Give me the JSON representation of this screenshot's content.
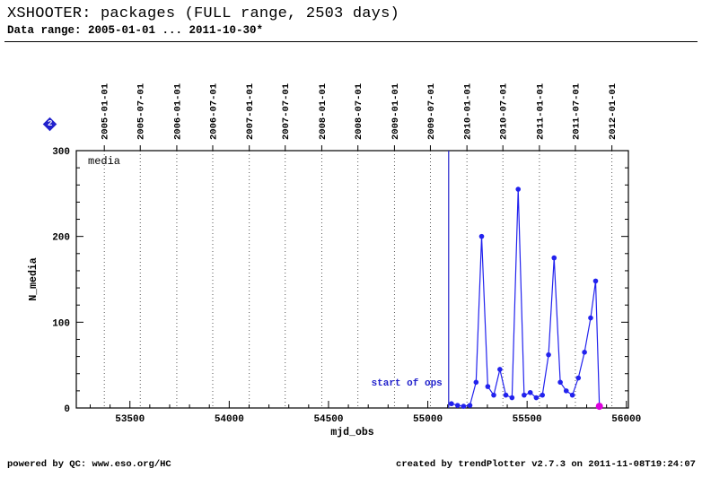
{
  "header": {
    "title": "XSHOOTER: packages (FULL range, 2503 days)",
    "subtitle": "Data range: 2005-01-01 ... 2011-10-30*"
  },
  "badge": {
    "value": "2",
    "color": "#2222cc"
  },
  "footer": {
    "left": "powered by QC: www.eso.org/HC",
    "right": "created by trendPlotter v2.7.3 on 2011-11-08T19:24:07"
  },
  "chart_data": {
    "type": "line",
    "title": "",
    "xlabel": "mjd_obs",
    "ylabel": "N_media",
    "legend": [
      "media"
    ],
    "legend_position": "top-left-inside",
    "grid": "vertical-dotted-at-dates",
    "xlim": [
      53230,
      56010
    ],
    "ylim": [
      0,
      300
    ],
    "x_ticks": [
      53500,
      54000,
      54500,
      55000,
      55500,
      56000
    ],
    "x_minor_step": 100,
    "y_ticks": [
      0,
      100,
      200,
      300
    ],
    "y_minor_step": 20,
    "top_date_ticks": [
      {
        "label": "2005-01-01",
        "mjd": 53371
      },
      {
        "label": "2005-07-01",
        "mjd": 53552
      },
      {
        "label": "2006-01-01",
        "mjd": 53736
      },
      {
        "label": "2006-07-01",
        "mjd": 53917
      },
      {
        "label": "2007-01-01",
        "mjd": 54101
      },
      {
        "label": "2007-07-01",
        "mjd": 54282
      },
      {
        "label": "2008-01-01",
        "mjd": 54466
      },
      {
        "label": "2008-07-01",
        "mjd": 54648
      },
      {
        "label": "2009-01-01",
        "mjd": 54832
      },
      {
        "label": "2009-07-01",
        "mjd": 55013
      },
      {
        "label": "2010-01-01",
        "mjd": 55197
      },
      {
        "label": "2010-07-01",
        "mjd": 55378
      },
      {
        "label": "2011-01-01",
        "mjd": 55562
      },
      {
        "label": "2011-07-01",
        "mjd": 55743
      },
      {
        "label": "2012-01-01",
        "mjd": 55927
      }
    ],
    "annotations": {
      "vline": {
        "mjd": 55105,
        "label": "start of ops",
        "color": "#2222cc"
      }
    },
    "series": [
      {
        "name": "media",
        "color": "#2222ee",
        "points": [
          [
            55119,
            5
          ],
          [
            55150,
            3
          ],
          [
            55180,
            2
          ],
          [
            55212,
            3
          ],
          [
            55243,
            30
          ],
          [
            55271,
            200
          ],
          [
            55302,
            25
          ],
          [
            55332,
            15
          ],
          [
            55363,
            45
          ],
          [
            55393,
            15
          ],
          [
            55424,
            12
          ],
          [
            55455,
            255
          ],
          [
            55485,
            15
          ],
          [
            55516,
            18
          ],
          [
            55546,
            12
          ],
          [
            55577,
            15
          ],
          [
            55608,
            62
          ],
          [
            55636,
            175
          ],
          [
            55667,
            30
          ],
          [
            55697,
            20
          ],
          [
            55728,
            15
          ],
          [
            55758,
            35
          ],
          [
            55789,
            65
          ],
          [
            55820,
            105
          ],
          [
            55845,
            148
          ],
          [
            55864,
            2
          ]
        ],
        "last_point_color": "#dd00dd"
      }
    ]
  }
}
